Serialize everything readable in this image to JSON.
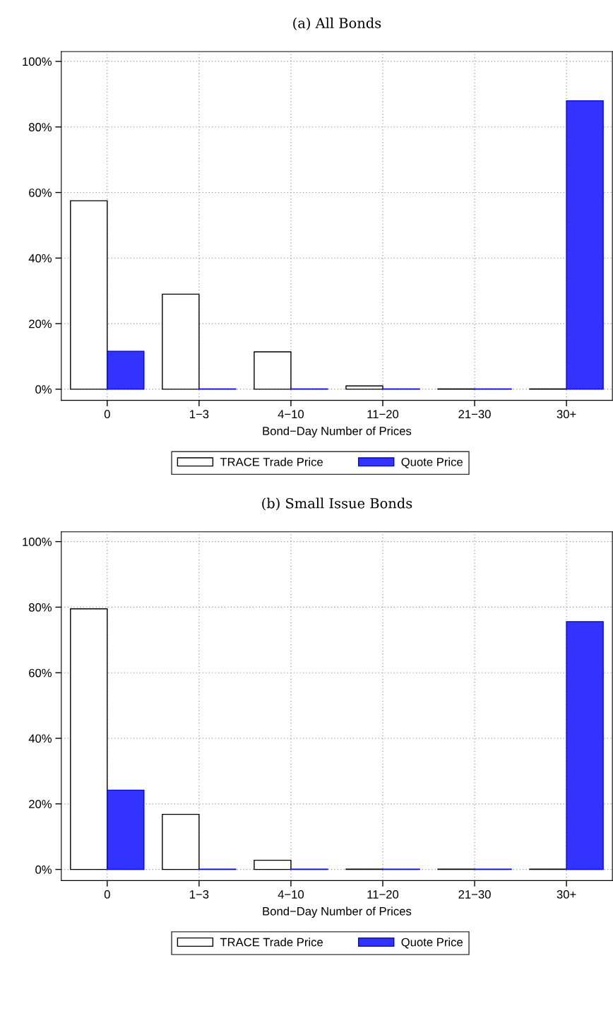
{
  "chart_data": [
    {
      "type": "bar",
      "title": "(a) All Bonds",
      "xlabel": "Bond−Day Number of Prices",
      "categories": [
        "0",
        "1−3",
        "4−10",
        "11−20",
        "21−30",
        "30+"
      ],
      "series": [
        {
          "name": "TRACE Trade Price",
          "color": "#ffffff",
          "values": [
            57.5,
            29,
            11.4,
            1.0,
            0.1,
            0.1
          ]
        },
        {
          "name": "Quote Price",
          "color": "#3333ff",
          "values": [
            11.6,
            0.1,
            0.1,
            0.1,
            0.1,
            88
          ]
        }
      ],
      "ylim": [
        -3.4,
        103
      ],
      "yticks": [
        {
          "value": 0,
          "label": "0%"
        },
        {
          "value": 20,
          "label": "20%"
        },
        {
          "value": 40,
          "label": "40%"
        },
        {
          "value": 60,
          "label": "60%"
        },
        {
          "value": 80,
          "label": "80%"
        },
        {
          "value": 100,
          "label": "100%"
        }
      ],
      "grid": true,
      "legend": "bottom"
    },
    {
      "type": "bar",
      "title": "(b) Small Issue Bonds",
      "xlabel": "Bond−Day Number of Prices",
      "categories": [
        "0",
        "1−3",
        "4−10",
        "11−20",
        "21−30",
        "30+"
      ],
      "series": [
        {
          "name": "TRACE Trade Price",
          "color": "#ffffff",
          "values": [
            79.5,
            16.8,
            2.8,
            0.1,
            0.1,
            0.1
          ]
        },
        {
          "name": "Quote Price",
          "color": "#3333ff",
          "values": [
            24.2,
            0.1,
            0.1,
            0.1,
            0.1,
            75.6
          ]
        }
      ],
      "ylim": [
        -3.4,
        103
      ],
      "yticks": [
        {
          "value": 0,
          "label": "0%"
        },
        {
          "value": 20,
          "label": "20%"
        },
        {
          "value": 40,
          "label": "40%"
        },
        {
          "value": 60,
          "label": "60%"
        },
        {
          "value": 80,
          "label": "80%"
        },
        {
          "value": 100,
          "label": "100%"
        }
      ],
      "grid": true,
      "legend": "bottom"
    }
  ]
}
